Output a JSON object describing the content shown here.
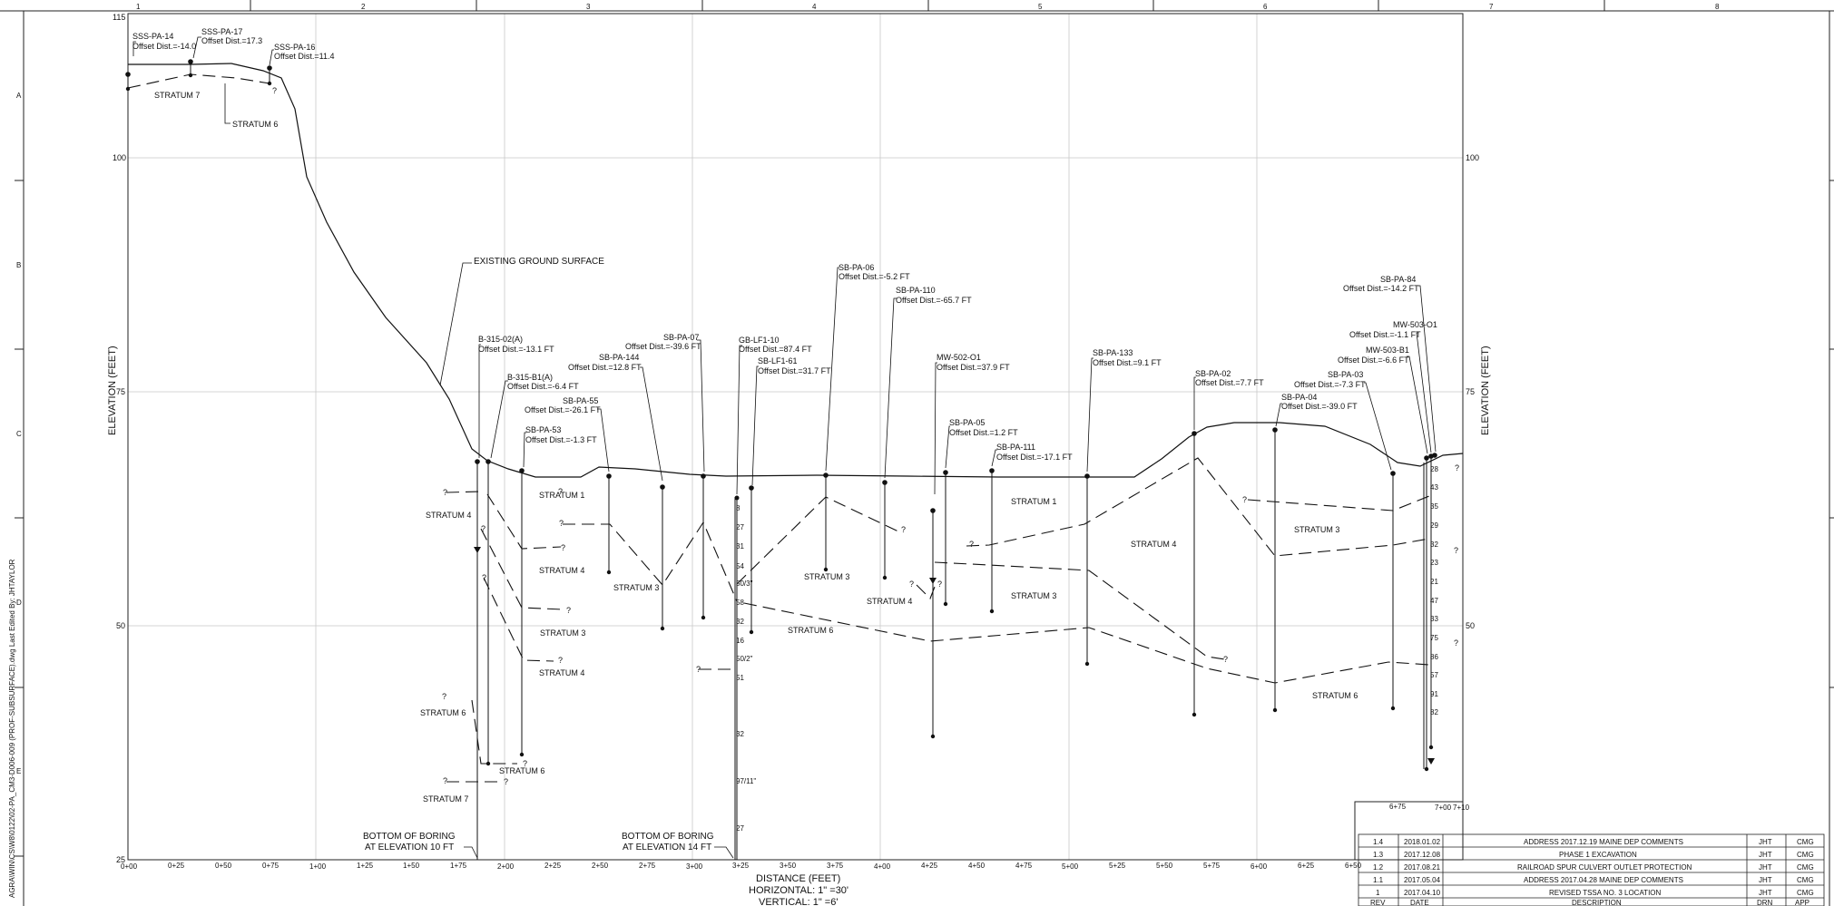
{
  "top_zones": [
    "1",
    "2",
    "3",
    "4",
    "5",
    "6",
    "7",
    "8"
  ],
  "side_zones": [
    "A",
    "B",
    "C",
    "D",
    "E"
  ],
  "margin_note": "AGRA\\WIN\\CS\\W8\\0122\\02-PA_CM3-D006-009 (PROF-SUBSURFACE).dwg Last Edited By: JHTAYLOR",
  "axes": {
    "y_label": "ELEVATION (FEET)",
    "y_ticks": [
      "115",
      "100",
      "75",
      "50",
      "25"
    ],
    "x_ticks": [
      "0+00",
      "0+25",
      "0+50",
      "0+75",
      "1+00",
      "1+25",
      "1+50",
      "1+75",
      "2+00",
      "2+25",
      "2+50",
      "2+75",
      "3+00",
      "3+25",
      "3+50",
      "3+75",
      "4+00",
      "4+25",
      "4+50",
      "4+75",
      "5+00",
      "5+25",
      "5+50",
      "5+75",
      "6+00",
      "6+25",
      "6+50"
    ],
    "x_ticks_inset": [
      "6+75",
      "7+00",
      "7+10"
    ],
    "x_title": "DISTANCE (FEET)",
    "scale_h": "HORIZONTAL: 1\" =30'",
    "scale_v": "VERTICAL: 1\" =6'"
  },
  "callouts": {
    "ground": "EXISTING GROUND SURFACE",
    "bottom1_a": "BOTTOM OF BORING",
    "bottom1_b": "AT ELEVATION 10 FT",
    "bottom2_a": "BOTTOM OF BORING",
    "bottom2_b": "AT ELEVATION 14 FT"
  },
  "borings": [
    {
      "name": "SSS-PA-14",
      "offset": "Offset Dist.=-14.0"
    },
    {
      "name": "SSS-PA-17",
      "offset": "Offset Dist.=17.3"
    },
    {
      "name": "SSS-PA-16",
      "offset": "Offset Dist.=11.4"
    },
    {
      "name": "B-315-02(A)",
      "offset": "Offset Dist.=-13.1 FT"
    },
    {
      "name": "B-315-B1(A)",
      "offset": "Offset Dist.=-6.4 FT"
    },
    {
      "name": "SB-PA-53",
      "offset": "Offset Dist.=-1.3 FT"
    },
    {
      "name": "SB-PA-55",
      "offset": "Offset Dist.=-26.1 FT"
    },
    {
      "name": "SB-PA-144",
      "offset": "Offset Dist.=12.8 FT"
    },
    {
      "name": "SB-PA-07",
      "offset": "Offset Dist.=-39.6 FT"
    },
    {
      "name": "GB-LF1-10",
      "offset": "Offset Dist.=87.4 FT"
    },
    {
      "name": "SB-LF1-61",
      "offset": "Offset Dist.=31.7 FT"
    },
    {
      "name": "SB-PA-06",
      "offset": "Offset Dist.=-5.2 FT"
    },
    {
      "name": "SB-PA-110",
      "offset": "Offset Dist.=-65.7 FT"
    },
    {
      "name": "MW-502-O1",
      "offset": "Offset Dist.=37.9 FT"
    },
    {
      "name": "SB-PA-05",
      "offset": "Offset Dist.=1.2 FT"
    },
    {
      "name": "SB-PA-111",
      "offset": "Offset Dist.=-17.1 FT"
    },
    {
      "name": "SB-PA-133",
      "offset": "Offset Dist.=9.1 FT"
    },
    {
      "name": "SB-PA-02",
      "offset": "Offset Dist.=7.7 FT"
    },
    {
      "name": "SB-PA-04",
      "offset": "Offset Dist.=-39.0 FT"
    },
    {
      "name": "SB-PA-03",
      "offset": "Offset Dist.=-7.3 FT"
    },
    {
      "name": "MW-503-B1",
      "offset": "Offset Dist.=-6.6 FT"
    },
    {
      "name": "MW-503-O1",
      "offset": "Offset Dist.=-1.1 FT"
    },
    {
      "name": "SB-PA-84",
      "offset": "Offset Dist.=-14.2 FT"
    }
  ],
  "strata": [
    "STRATUM 7",
    "STRATUM 6",
    "STRATUM 1",
    "STRATUM 4",
    "STRATUM 4",
    "STRATUM 3",
    "STRATUM 4",
    "STRATUM 6",
    "STRATUM 6",
    "STRATUM 7",
    "STRATUM 3",
    "STRATUM 3",
    "STRATUM 6",
    "STRATUM 4",
    "STRATUM 1",
    "STRATUM 3",
    "STRATUM 4",
    "STRATUM 3",
    "STRATUM 6"
  ],
  "spt_left": [
    "8",
    "27",
    "31",
    "54",
    "50/3\"",
    "58",
    "32",
    "16",
    "50/2\"",
    "51",
    "32",
    "97/11\"",
    "27"
  ],
  "spt_right": [
    "28",
    "43",
    "35",
    "29",
    "32",
    "23",
    "21",
    "47",
    "33",
    "75",
    "86",
    "57",
    "91",
    "82"
  ],
  "revisions": {
    "rows": [
      {
        "rev": "1.4",
        "date": "2018.01.02",
        "desc": "ADDRESS 2017.12.19 MAINE DEP COMMENTS",
        "drn": "JHT",
        "app": "CMG"
      },
      {
        "rev": "1.3",
        "date": "2017.12.08",
        "desc": "PHASE 1 EXCAVATION",
        "drn": "JHT",
        "app": "CMG"
      },
      {
        "rev": "1.2",
        "date": "2017.08.21",
        "desc": "RAILROAD SPUR CULVERT OUTLET PROTECTION",
        "drn": "JHT",
        "app": "CMG"
      },
      {
        "rev": "1.1",
        "date": "2017.05.04",
        "desc": "ADDRESS 2017.04.28 MAINE DEP COMMENTS",
        "drn": "JHT",
        "app": "CMG"
      },
      {
        "rev": "1",
        "date": "2017.04.10",
        "desc": "REVISED TSSA NO. 3 LOCATION",
        "drn": "JHT",
        "app": "CMG"
      }
    ],
    "headers": {
      "rev": "REV",
      "date": "DATE",
      "desc": "DESCRIPTION",
      "drn": "DRN",
      "app": "APP"
    }
  }
}
